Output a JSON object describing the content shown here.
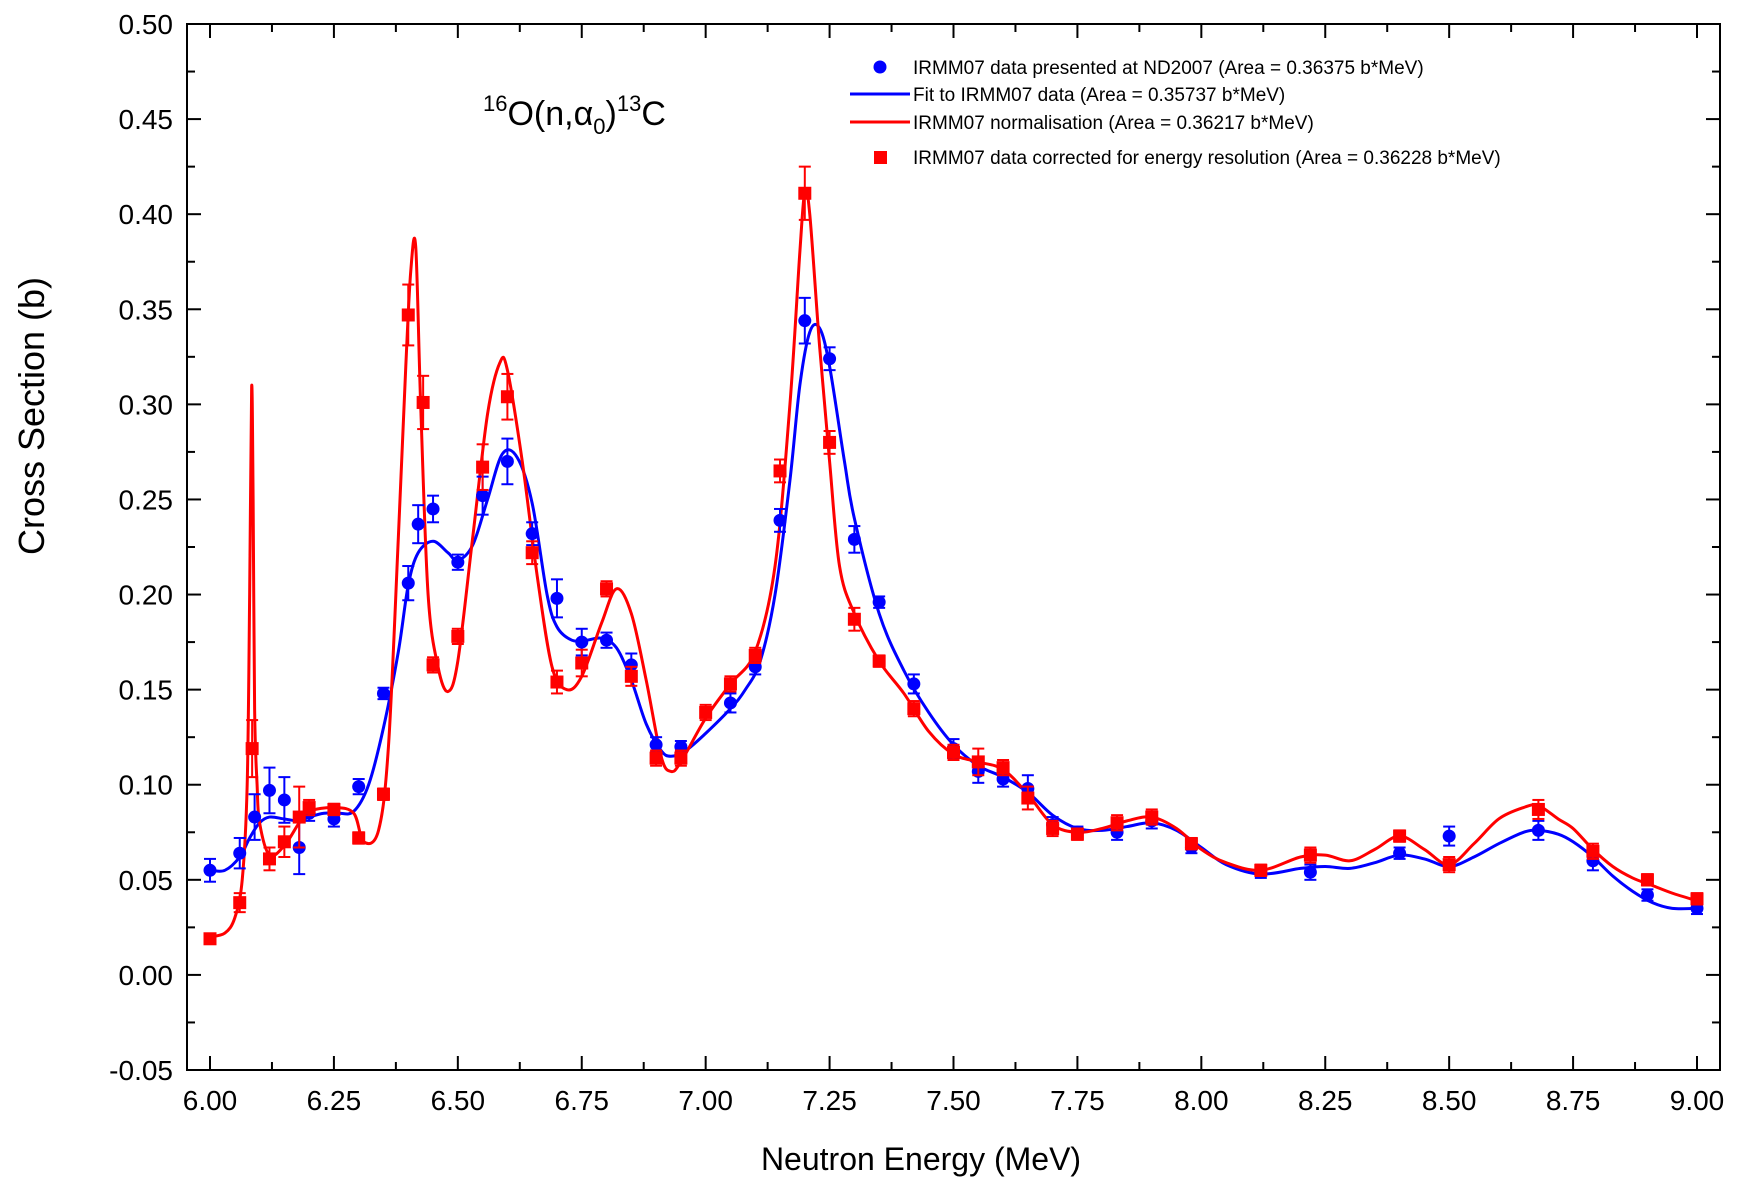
{
  "chart_data": {
    "type": "scatter",
    "xlabel": "Neutron Energy (MeV)",
    "ylabel": "Cross Section (b)",
    "xlim": [
      6.0,
      9.0
    ],
    "ylim": [
      -0.05,
      0.5
    ],
    "x_ticks": [
      "6.00",
      "6.25",
      "6.50",
      "6.75",
      "7.00",
      "7.25",
      "7.50",
      "7.75",
      "8.00",
      "8.25",
      "8.50",
      "8.75",
      "9.00"
    ],
    "y_ticks": [
      "-0.05",
      "0.00",
      "0.05",
      "0.10",
      "0.15",
      "0.20",
      "0.25",
      "0.30",
      "0.35",
      "0.40",
      "0.45",
      "0.50"
    ],
    "annotation": {
      "base": "O(n,α",
      "sup1": "16",
      "sub": "0",
      "close": ")",
      "sup2": "13",
      "tail": "C"
    },
    "grid": false,
    "legend_position": "top-right",
    "series": [
      {
        "name": "IRMM07 data presented at ND2007 (Area = 0.36375 b*MeV)",
        "kind": "points",
        "marker": "circle",
        "color": "#0000ff",
        "x": [
          6.0,
          6.06,
          6.09,
          6.12,
          6.15,
          6.18,
          6.2,
          6.25,
          6.3,
          6.35,
          6.4,
          6.42,
          6.45,
          6.5,
          6.55,
          6.6,
          6.65,
          6.7,
          6.75,
          6.8,
          6.85,
          6.9,
          6.95,
          7.05,
          7.1,
          7.15,
          7.2,
          7.25,
          7.3,
          7.35,
          7.42,
          7.5,
          7.55,
          7.6,
          7.65,
          7.7,
          7.75,
          7.83,
          7.9,
          7.98,
          8.12,
          8.22,
          8.4,
          8.5,
          8.68,
          8.79,
          8.9,
          9.0
        ],
        "y": [
          0.055,
          0.064,
          0.083,
          0.097,
          0.092,
          0.067,
          0.085,
          0.082,
          0.099,
          0.148,
          0.206,
          0.237,
          0.245,
          0.217,
          0.252,
          0.27,
          0.232,
          0.198,
          0.175,
          0.176,
          0.163,
          0.121,
          0.12,
          0.143,
          0.162,
          0.239,
          0.344,
          0.324,
          0.229,
          0.196,
          0.153,
          0.119,
          0.107,
          0.103,
          0.098,
          0.079,
          0.075,
          0.075,
          0.081,
          0.067,
          0.054,
          0.054,
          0.064,
          0.073,
          0.076,
          0.06,
          0.042,
          0.035
        ],
        "err": [
          0.006,
          0.008,
          0.012,
          0.012,
          0.012,
          0.014,
          0.004,
          0.004,
          0.004,
          0.003,
          0.009,
          0.01,
          0.007,
          0.004,
          0.01,
          0.012,
          0.006,
          0.01,
          0.007,
          0.004,
          0.006,
          0.004,
          0.003,
          0.005,
          0.004,
          0.006,
          0.012,
          0.006,
          0.007,
          0.003,
          0.005,
          0.005,
          0.006,
          0.004,
          0.007,
          0.004,
          0.003,
          0.004,
          0.004,
          0.003,
          0.003,
          0.004,
          0.003,
          0.005,
          0.005,
          0.005,
          0.003,
          0.003
        ]
      },
      {
        "name": "Fit to IRMM07 data (Area = 0.35737 b*MeV)",
        "kind": "line",
        "color": "#0000ff",
        "x": [
          6.0,
          6.03,
          6.06,
          6.08,
          6.1,
          6.12,
          6.15,
          6.18,
          6.2,
          6.23,
          6.26,
          6.29,
          6.32,
          6.35,
          6.38,
          6.4,
          6.42,
          6.45,
          6.48,
          6.5,
          6.53,
          6.56,
          6.59,
          6.62,
          6.65,
          6.68,
          6.7,
          6.73,
          6.76,
          6.79,
          6.82,
          6.85,
          6.88,
          6.91,
          6.93,
          6.96,
          7.0,
          7.05,
          7.08,
          7.11,
          7.14,
          7.17,
          7.19,
          7.21,
          7.23,
          7.25,
          7.28,
          7.3,
          7.35,
          7.4,
          7.45,
          7.5,
          7.55,
          7.6,
          7.65,
          7.7,
          7.75,
          7.8,
          7.85,
          7.9,
          7.95,
          8.0,
          8.05,
          8.12,
          8.2,
          8.25,
          8.3,
          8.35,
          8.4,
          8.45,
          8.5,
          8.55,
          8.6,
          8.65,
          8.68,
          8.72,
          8.75,
          8.79,
          8.83,
          8.87,
          8.91,
          8.95,
          9.0
        ],
        "y": [
          0.055,
          0.055,
          0.062,
          0.072,
          0.08,
          0.083,
          0.082,
          0.081,
          0.083,
          0.085,
          0.085,
          0.086,
          0.1,
          0.13,
          0.17,
          0.205,
          0.222,
          0.228,
          0.222,
          0.218,
          0.226,
          0.25,
          0.274,
          0.272,
          0.248,
          0.2,
          0.183,
          0.176,
          0.176,
          0.177,
          0.172,
          0.155,
          0.132,
          0.118,
          0.115,
          0.118,
          0.127,
          0.14,
          0.15,
          0.165,
          0.2,
          0.26,
          0.31,
          0.338,
          0.34,
          0.32,
          0.27,
          0.24,
          0.19,
          0.16,
          0.138,
          0.121,
          0.11,
          0.104,
          0.096,
          0.084,
          0.077,
          0.076,
          0.078,
          0.08,
          0.076,
          0.067,
          0.058,
          0.053,
          0.056,
          0.057,
          0.056,
          0.059,
          0.063,
          0.061,
          0.057,
          0.062,
          0.069,
          0.075,
          0.076,
          0.074,
          0.07,
          0.062,
          0.052,
          0.044,
          0.038,
          0.035,
          0.035
        ]
      },
      {
        "name": "IRMM07 normalisation (Area = 0.36217 b*MeV)",
        "kind": "line",
        "color": "#ff0000",
        "x": [
          6.0,
          6.03,
          6.05,
          6.065,
          6.075,
          6.08,
          6.084,
          6.087,
          6.09,
          6.095,
          6.1,
          6.12,
          6.15,
          6.18,
          6.2,
          6.25,
          6.29,
          6.31,
          6.34,
          6.36,
          6.38,
          6.395,
          6.405,
          6.415,
          6.425,
          6.44,
          6.46,
          6.48,
          6.5,
          6.53,
          6.56,
          6.585,
          6.6,
          6.63,
          6.66,
          6.69,
          6.72,
          6.75,
          6.79,
          6.82,
          6.85,
          6.88,
          6.91,
          6.93,
          6.95,
          7.0,
          7.05,
          7.1,
          7.14,
          7.17,
          7.19,
          7.2,
          7.21,
          7.23,
          7.25,
          7.27,
          7.3,
          7.35,
          7.4,
          7.45,
          7.5,
          7.55,
          7.6,
          7.65,
          7.7,
          7.75,
          7.8,
          7.85,
          7.9,
          7.95,
          8.0,
          8.05,
          8.12,
          8.2,
          8.25,
          8.3,
          8.35,
          8.4,
          8.45,
          8.5,
          8.55,
          8.6,
          8.65,
          8.68,
          8.72,
          8.75,
          8.79,
          8.83,
          8.87,
          8.91,
          8.95,
          9.0
        ],
        "y": [
          0.02,
          0.022,
          0.03,
          0.05,
          0.1,
          0.2,
          0.309,
          0.25,
          0.14,
          0.1,
          0.08,
          0.063,
          0.068,
          0.08,
          0.086,
          0.088,
          0.085,
          0.07,
          0.076,
          0.12,
          0.23,
          0.32,
          0.37,
          0.383,
          0.3,
          0.2,
          0.162,
          0.149,
          0.165,
          0.23,
          0.295,
          0.322,
          0.318,
          0.27,
          0.21,
          0.162,
          0.15,
          0.157,
          0.185,
          0.203,
          0.19,
          0.155,
          0.115,
          0.107,
          0.112,
          0.135,
          0.153,
          0.17,
          0.215,
          0.3,
          0.38,
          0.412,
          0.4,
          0.33,
          0.27,
          0.215,
          0.19,
          0.165,
          0.148,
          0.128,
          0.116,
          0.112,
          0.108,
          0.095,
          0.079,
          0.075,
          0.077,
          0.081,
          0.083,
          0.077,
          0.066,
          0.059,
          0.055,
          0.062,
          0.063,
          0.06,
          0.066,
          0.073,
          0.066,
          0.058,
          0.069,
          0.082,
          0.088,
          0.089,
          0.082,
          0.077,
          0.066,
          0.057,
          0.051,
          0.047,
          0.043,
          0.039
        ]
      },
      {
        "name": "IRMM07 data corrected for energy resolution (Area = 0.36228 b*MeV)",
        "kind": "points",
        "marker": "square",
        "color": "#ff0000",
        "x": [
          6.0,
          6.06,
          6.085,
          6.12,
          6.15,
          6.18,
          6.2,
          6.25,
          6.3,
          6.35,
          6.4,
          6.43,
          6.45,
          6.5,
          6.55,
          6.6,
          6.65,
          6.7,
          6.75,
          6.8,
          6.85,
          6.9,
          6.95,
          7.0,
          7.05,
          7.1,
          7.15,
          7.2,
          7.25,
          7.3,
          7.35,
          7.42,
          7.5,
          7.55,
          7.6,
          7.65,
          7.7,
          7.75,
          7.83,
          7.9,
          7.98,
          8.12,
          8.22,
          8.4,
          8.5,
          8.68,
          8.79,
          8.9,
          9.0
        ],
        "y": [
          0.019,
          0.038,
          0.119,
          0.061,
          0.07,
          0.083,
          0.088,
          0.087,
          0.072,
          0.095,
          0.347,
          0.301,
          0.163,
          0.178,
          0.267,
          0.304,
          0.222,
          0.154,
          0.164,
          0.203,
          0.157,
          0.114,
          0.114,
          0.138,
          0.153,
          0.168,
          0.265,
          0.411,
          0.28,
          0.187,
          0.165,
          0.14,
          0.117,
          0.112,
          0.109,
          0.093,
          0.077,
          0.074,
          0.08,
          0.083,
          0.069,
          0.055,
          0.063,
          0.073,
          0.058,
          0.087,
          0.065,
          0.05,
          0.04
        ],
        "err": [
          0.002,
          0.005,
          0.015,
          0.006,
          0.008,
          0.016,
          0.004,
          0.003,
          0.003,
          0.003,
          0.016,
          0.014,
          0.004,
          0.004,
          0.012,
          0.012,
          0.006,
          0.006,
          0.007,
          0.004,
          0.005,
          0.004,
          0.004,
          0.004,
          0.004,
          0.004,
          0.006,
          0.014,
          0.006,
          0.006,
          0.003,
          0.004,
          0.004,
          0.007,
          0.004,
          0.006,
          0.004,
          0.003,
          0.004,
          0.004,
          0.003,
          0.003,
          0.004,
          0.003,
          0.004,
          0.005,
          0.004,
          0.003,
          0.003
        ]
      }
    ]
  }
}
